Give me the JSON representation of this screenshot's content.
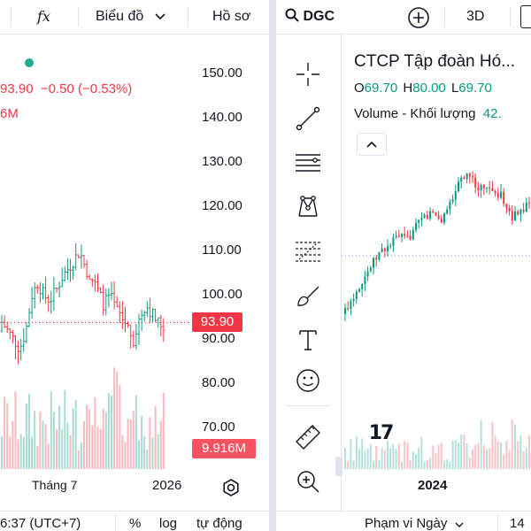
{
  "left": {
    "toolbar": {
      "fx_label": "fx",
      "chart_type_label": "Biểu đồ",
      "profile_label": "Hồ sơ"
    },
    "legend": {
      "last": "93.90",
      "change": "−0.50 (−0.53%)",
      "volume": "6M"
    },
    "price_axis": [
      "150.00",
      "140.00",
      "130.00",
      "120.00",
      "110.00",
      "100.00",
      "90.00",
      "80.00",
      "70.00"
    ],
    "price_badge": "93.90",
    "volume_badge": "9.916M",
    "time_axis": [
      "Tháng 7",
      "2026"
    ],
    "bottom": {
      "time": "6:37 (UTC+7)",
      "percent": "%",
      "log": "log",
      "auto": "tự động"
    },
    "colors": {
      "up": "#089981",
      "down": "#f23645",
      "badge": "#f23645"
    }
  },
  "right": {
    "toolbar": {
      "symbol": "DGC",
      "mode_3d": "3D"
    },
    "legend": {
      "title": "CTCP Tập đoàn Hó...",
      "o_label": "O",
      "o_value": "69.70",
      "h_label": "H",
      "h_value": "80.00",
      "l_label": "L",
      "l_value": "69.70",
      "volume_label": "Volume - Khối lượng",
      "volume_value": "42."
    },
    "time_axis": [
      "2024"
    ],
    "bottom": {
      "range_label": "Phạm vi Ngày",
      "extra": "14"
    },
    "logo_text": "17",
    "tools": [
      "crosshair-icon",
      "trend-line-icon",
      "horizontal-lines-icon",
      "pattern-icon",
      "fib-icon",
      "brush-icon",
      "text-tool-icon",
      "emoji-icon",
      "ruler-icon",
      "zoom-in-icon"
    ]
  }
}
